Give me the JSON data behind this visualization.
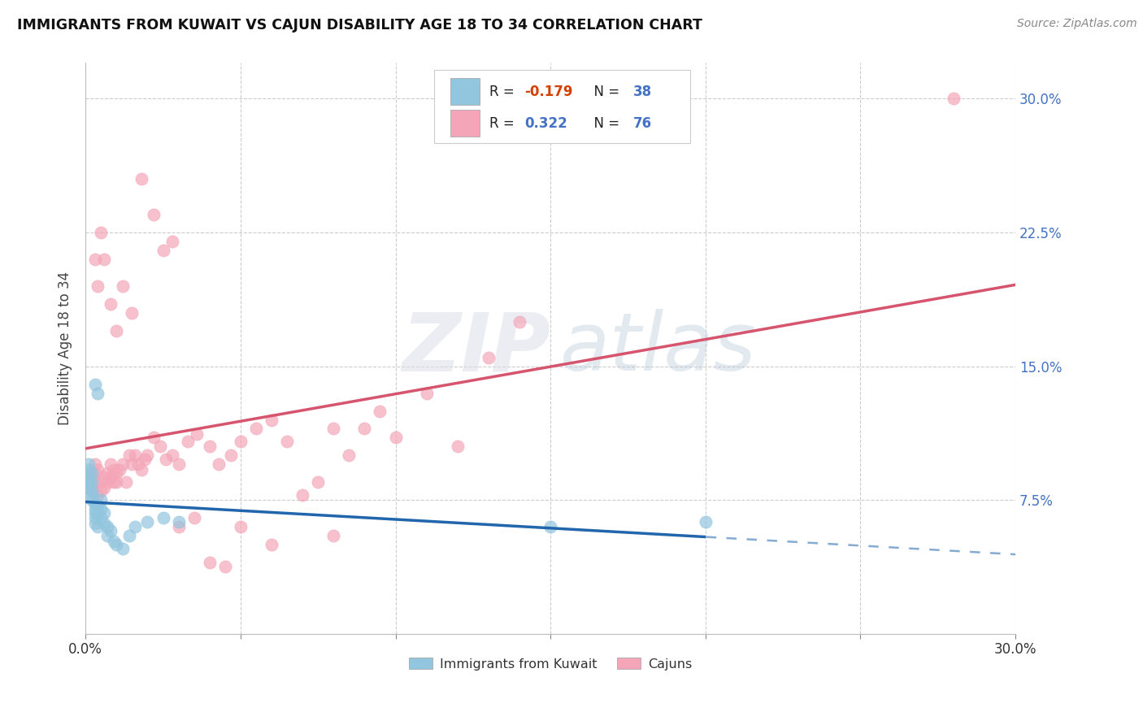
{
  "title": "IMMIGRANTS FROM KUWAIT VS CAJUN DISABILITY AGE 18 TO 34 CORRELATION CHART",
  "source": "Source: ZipAtlas.com",
  "ylabel": "Disability Age 18 to 34",
  "xlim": [
    0.0,
    0.3
  ],
  "ylim": [
    0.0,
    0.32
  ],
  "blue_color": "#92c5de",
  "pink_color": "#f4a6b8",
  "blue_line_color": "#2166ac",
  "pink_line_color": "#d6546e",
  "watermark_zip": "ZIP",
  "watermark_atlas": "atlas",
  "legend_r1_pre": "R = ",
  "legend_r1_val": "-0.179",
  "legend_n1_pre": "  N = ",
  "legend_n1_val": "38",
  "legend_r2_pre": "R =  ",
  "legend_r2_val": "0.322",
  "legend_n2_pre": "  N = ",
  "legend_n2_val": "76",
  "blue_scatter_x": [
    0.001,
    0.001,
    0.001,
    0.001,
    0.001,
    0.002,
    0.002,
    0.002,
    0.002,
    0.002,
    0.003,
    0.003,
    0.003,
    0.003,
    0.003,
    0.004,
    0.004,
    0.004,
    0.005,
    0.005,
    0.005,
    0.006,
    0.006,
    0.007,
    0.007,
    0.008,
    0.009,
    0.01,
    0.012,
    0.014,
    0.016,
    0.02,
    0.025,
    0.03,
    0.15,
    0.2,
    0.003,
    0.004
  ],
  "blue_scatter_y": [
    0.095,
    0.092,
    0.088,
    0.085,
    0.082,
    0.09,
    0.085,
    0.08,
    0.078,
    0.075,
    0.073,
    0.07,
    0.068,
    0.065,
    0.062,
    0.072,
    0.068,
    0.06,
    0.075,
    0.07,
    0.065,
    0.068,
    0.062,
    0.06,
    0.055,
    0.058,
    0.052,
    0.05,
    0.048,
    0.055,
    0.06,
    0.063,
    0.065,
    0.063,
    0.06,
    0.063,
    0.14,
    0.135
  ],
  "pink_scatter_x": [
    0.001,
    0.001,
    0.002,
    0.002,
    0.003,
    0.003,
    0.003,
    0.004,
    0.004,
    0.005,
    0.005,
    0.006,
    0.006,
    0.007,
    0.007,
    0.008,
    0.008,
    0.009,
    0.009,
    0.01,
    0.01,
    0.011,
    0.012,
    0.013,
    0.014,
    0.015,
    0.016,
    0.017,
    0.018,
    0.019,
    0.02,
    0.022,
    0.024,
    0.026,
    0.028,
    0.03,
    0.033,
    0.036,
    0.04,
    0.043,
    0.047,
    0.05,
    0.055,
    0.06,
    0.065,
    0.07,
    0.075,
    0.08,
    0.085,
    0.09,
    0.095,
    0.1,
    0.11,
    0.12,
    0.13,
    0.14,
    0.003,
    0.004,
    0.005,
    0.006,
    0.008,
    0.01,
    0.012,
    0.015,
    0.018,
    0.022,
    0.025,
    0.028,
    0.03,
    0.035,
    0.04,
    0.045,
    0.05,
    0.06,
    0.08,
    0.28
  ],
  "pink_scatter_y": [
    0.09,
    0.085,
    0.088,
    0.082,
    0.095,
    0.09,
    0.085,
    0.092,
    0.078,
    0.085,
    0.08,
    0.088,
    0.082,
    0.09,
    0.085,
    0.095,
    0.088,
    0.092,
    0.085,
    0.09,
    0.085,
    0.092,
    0.095,
    0.085,
    0.1,
    0.095,
    0.1,
    0.095,
    0.092,
    0.098,
    0.1,
    0.11,
    0.105,
    0.098,
    0.1,
    0.095,
    0.108,
    0.112,
    0.105,
    0.095,
    0.1,
    0.108,
    0.115,
    0.12,
    0.108,
    0.078,
    0.085,
    0.115,
    0.1,
    0.115,
    0.125,
    0.11,
    0.135,
    0.105,
    0.155,
    0.175,
    0.21,
    0.195,
    0.225,
    0.21,
    0.185,
    0.17,
    0.195,
    0.18,
    0.255,
    0.235,
    0.215,
    0.22,
    0.06,
    0.065,
    0.04,
    0.038,
    0.06,
    0.05,
    0.055,
    0.3
  ]
}
